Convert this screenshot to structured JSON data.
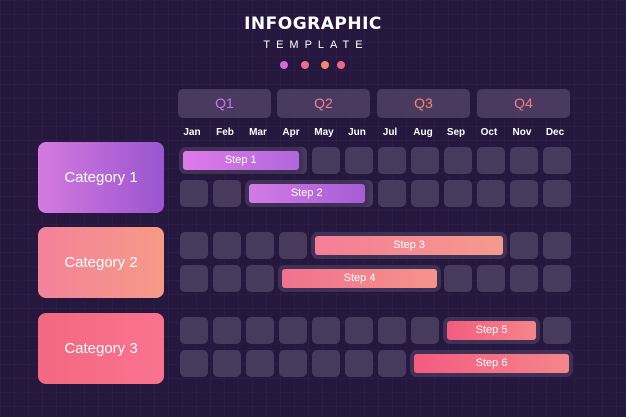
{
  "header": {
    "title": "INFOGRAPHIC",
    "subtitle": "TEMPLATE"
  },
  "dots": [
    "#d66bd9",
    "#ee6d8e",
    "#f48a6c",
    "#f26384"
  ],
  "quarters": [
    {
      "label": "Q1",
      "color": "#c877e6"
    },
    {
      "label": "Q2",
      "color": "#ef7f96"
    },
    {
      "label": "Q3",
      "color": "#f48767"
    },
    {
      "label": "Q4",
      "color": "#f27b88"
    }
  ],
  "months": [
    "Jan",
    "Feb",
    "Mar",
    "Apr",
    "May",
    "Jun",
    "Jul",
    "Aug",
    "Sep",
    "Oct",
    "Nov",
    "Dec"
  ],
  "categories": [
    {
      "label": "Category 1",
      "gradient": [
        "#d47ae0",
        "#9a55cf"
      ]
    },
    {
      "label": "Category 2",
      "gradient": [
        "#f3829a",
        "#f69a86"
      ]
    },
    {
      "label": "Category 3",
      "gradient": [
        "#f46880",
        "#f9738f"
      ]
    }
  ],
  "steps": [
    {
      "label": "Step 1",
      "row": 0,
      "start": 0,
      "end": 3.5,
      "gradient": [
        "#e07ae8",
        "#b068dc"
      ]
    },
    {
      "label": "Step 2",
      "row": 1,
      "start": 2,
      "end": 5.5,
      "gradient": [
        "#d37be6",
        "#a65cd6"
      ]
    },
    {
      "label": "Step 3",
      "row": 2,
      "start": 4,
      "end": 9.7,
      "gradient": [
        "#f47e96",
        "#f59a8c"
      ]
    },
    {
      "label": "Step 4",
      "row": 3,
      "start": 3,
      "end": 7.7,
      "gradient": [
        "#f0728d",
        "#f5938a"
      ]
    },
    {
      "label": "Step 5",
      "row": 4,
      "start": 8,
      "end": 10.7,
      "gradient": [
        "#f35c80",
        "#f5858a"
      ]
    },
    {
      "label": "Step 6",
      "row": 5,
      "start": 7,
      "end": 11.7,
      "gradient": [
        "#f35c80",
        "#f5858a"
      ]
    }
  ]
}
